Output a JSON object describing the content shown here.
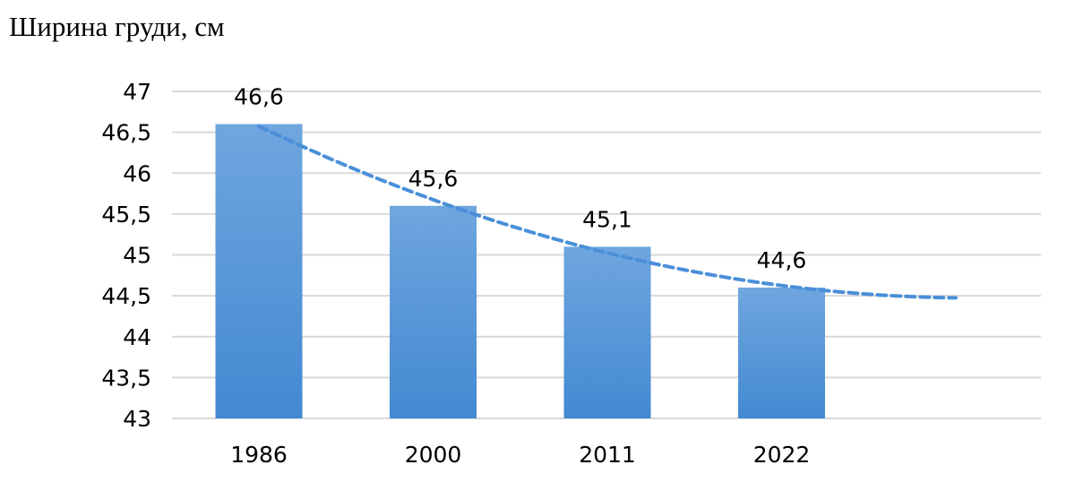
{
  "chart_data": {
    "type": "bar",
    "title": "Ширина груди, см",
    "categories": [
      "1986",
      "2000",
      "2011",
      "2022"
    ],
    "values": [
      46.6,
      45.6,
      45.1,
      44.6
    ],
    "data_labels": [
      "46,6",
      "45,6",
      "45,1",
      "44,6"
    ],
    "ylim": [
      43,
      47
    ],
    "yticks": [
      43,
      43.5,
      44,
      44.5,
      45,
      45.5,
      46,
      46.5,
      47
    ],
    "ytick_labels": [
      "43",
      "43,5",
      "44",
      "44,5",
      "45",
      "45,5",
      "46",
      "46,5",
      "47"
    ],
    "grid": true,
    "legend": "none",
    "trendline": {
      "type": "polynomial",
      "style": "dashed",
      "extends_forward_periods": 1
    },
    "colors": {
      "bar_top": "#6fa6df",
      "bar_bottom": "#4389d1",
      "trendline": "#4a8fd8",
      "grid": "#d9d9d9"
    }
  }
}
